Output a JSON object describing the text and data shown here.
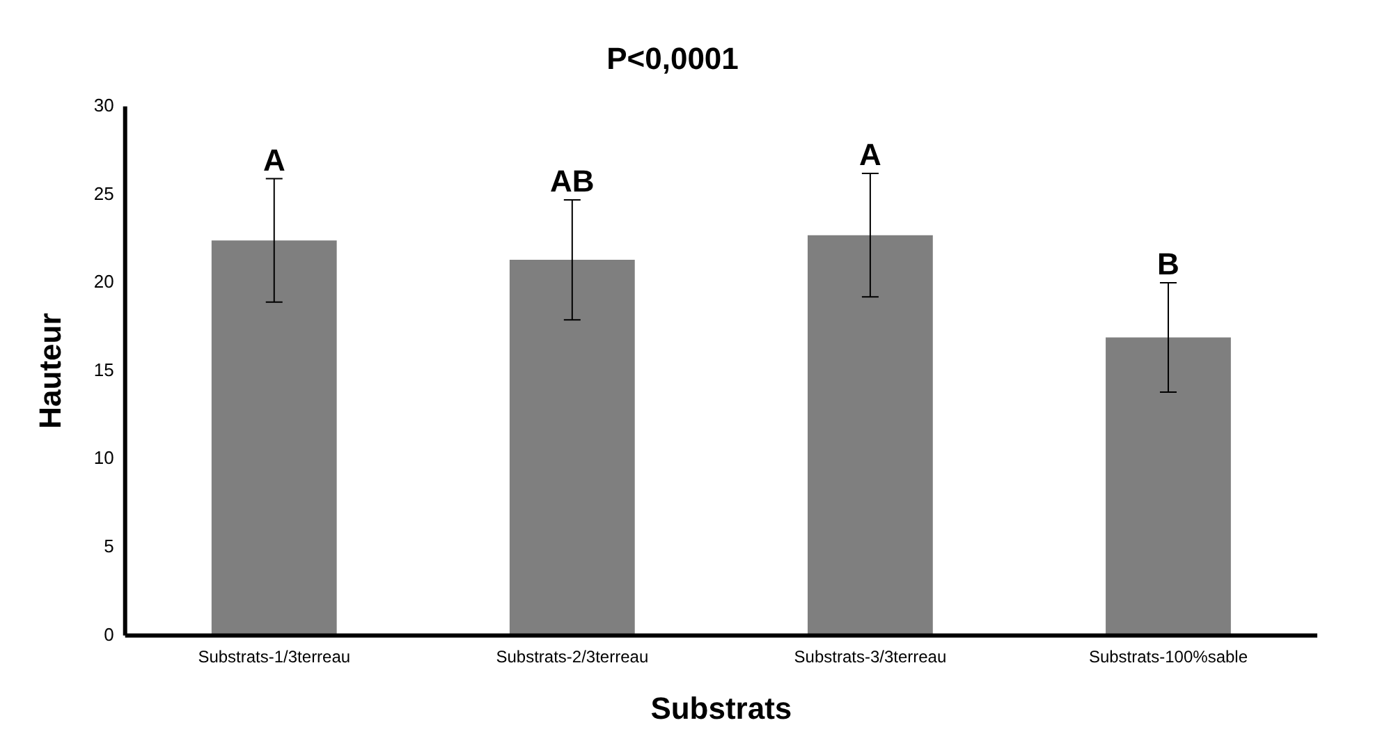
{
  "chart_data": {
    "type": "bar",
    "title": "P<0,0001",
    "xlabel": "Substrats",
    "ylabel": "Hauteur",
    "categories": [
      "Substrats-1/3terreau",
      "Substrats-2/3terreau",
      "Substrats-3/3terreau",
      "Substrats-100%sable"
    ],
    "values": [
      22.4,
      21.3,
      22.7,
      16.9
    ],
    "errors": [
      3.5,
      3.4,
      3.5,
      3.1
    ],
    "color": "#7f7f7f",
    "ylim": [
      0,
      30
    ],
    "yticks": [
      0,
      5,
      10,
      15,
      20,
      25,
      30
    ],
    "grid": false,
    "legend": false,
    "annotations": [
      {
        "text": "A",
        "x": "Substrats-1/3terreau",
        "y": 25.9
      },
      {
        "text": "AB",
        "x": "Substrats-2/3terreau",
        "y": 24.7
      },
      {
        "text": "A",
        "x": "Substrats-3/3terreau",
        "y": 26.2
      },
      {
        "text": "B",
        "x": "Substrats-100%sable",
        "y": 20
      }
    ]
  }
}
